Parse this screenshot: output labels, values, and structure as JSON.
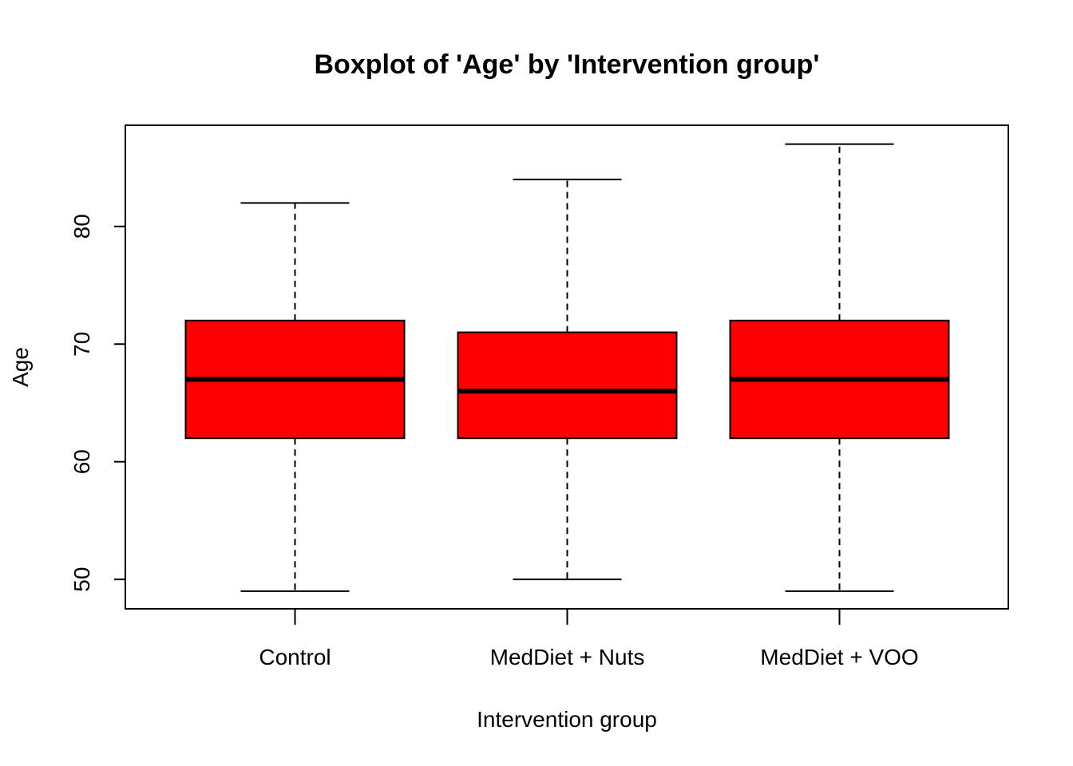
{
  "chart_data": {
    "type": "boxplot",
    "title": "Boxplot of 'Age' by 'Intervention group'",
    "xlabel": "Intervention group",
    "ylabel": "Age",
    "ylim": [
      47.5,
      88.6
    ],
    "yticks": [
      50,
      60,
      70,
      80
    ],
    "categories": [
      "Control",
      "MedDiet + Nuts",
      "MedDiet + VOO"
    ],
    "boxes": [
      {
        "category": "Control",
        "min": 49,
        "q1": 62,
        "median": 67,
        "q3": 72,
        "max": 82
      },
      {
        "category": "MedDiet + Nuts",
        "min": 50,
        "q1": 62,
        "median": 66,
        "q3": 71,
        "max": 84
      },
      {
        "category": "MedDiet + VOO",
        "min": 49,
        "q1": 62,
        "median": 67,
        "q3": 72,
        "max": 87
      }
    ],
    "box_color": "#ff0000",
    "grid": false,
    "legend": "none"
  }
}
